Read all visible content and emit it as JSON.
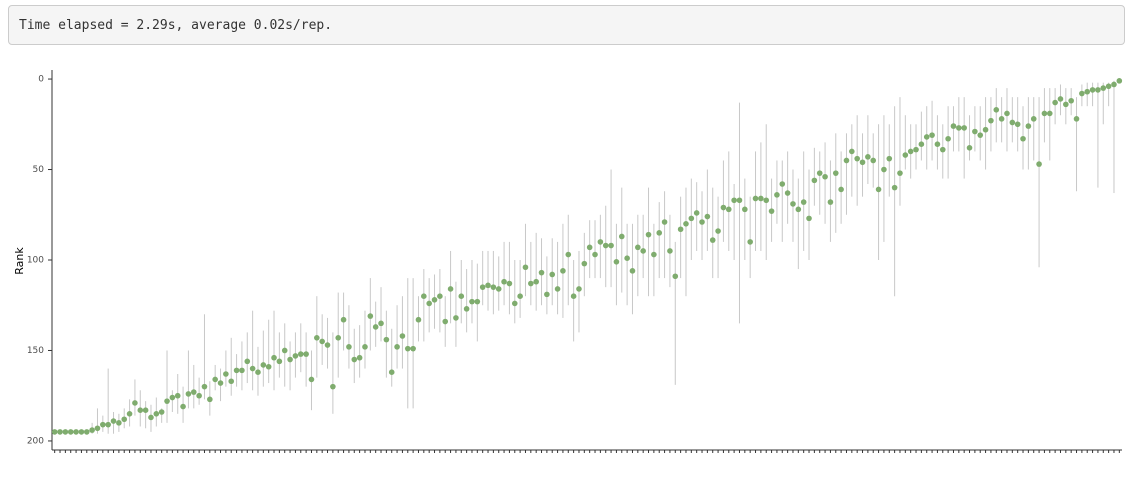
{
  "console_output": "Time elapsed = 2.29s, average 0.02s/rep.",
  "chart_data": {
    "type": "errorpoint",
    "y_label": "Rank",
    "invert_y": true,
    "ylim": [
      -5,
      205
    ],
    "yticks": [
      0,
      50,
      100,
      150,
      200
    ],
    "point_color": "#7fac6e",
    "bar_color": "#c8c8c8",
    "categories": [
      null,
      null,
      null,
      null,
      null,
      null,
      null,
      null,
      null,
      null,
      null,
      null,
      null,
      null,
      null,
      null,
      null,
      null,
      null,
      null,
      null,
      null,
      null,
      null,
      null,
      null,
      null,
      null,
      null,
      null,
      null,
      null,
      null,
      null,
      null,
      null,
      null,
      null,
      null,
      null,
      null,
      null,
      null,
      null,
      null,
      null,
      null,
      null,
      null,
      null,
      null,
      null,
      null,
      null,
      null,
      null,
      null,
      null,
      null,
      null,
      null,
      null,
      null,
      null,
      null,
      null,
      null,
      null,
      null,
      null,
      null,
      null,
      null,
      null,
      null,
      null,
      null,
      null,
      null,
      null,
      null,
      null,
      null,
      null,
      null,
      null,
      null,
      null,
      null,
      null,
      null,
      null,
      null,
      null,
      null,
      null,
      null,
      null,
      null,
      null,
      null,
      null,
      null,
      null,
      null,
      null,
      null,
      null,
      null,
      null,
      null,
      null,
      null,
      null,
      null,
      null,
      null,
      null,
      null,
      null,
      null,
      null,
      null,
      null,
      null,
      null,
      null,
      null,
      null,
      null,
      null,
      null,
      null,
      null,
      null,
      null,
      null,
      null,
      null,
      null,
      null,
      null,
      null,
      null,
      null,
      null,
      null,
      null,
      null,
      null,
      null,
      null,
      null,
      null,
      null,
      null,
      null,
      null,
      null,
      null,
      null,
      null,
      null,
      null,
      null,
      null,
      null,
      null,
      null,
      null,
      null,
      null,
      null,
      null,
      null,
      null,
      null,
      null,
      null,
      null,
      null,
      null,
      null,
      null,
      null,
      null,
      null,
      null,
      null,
      null,
      null,
      null,
      null,
      null,
      null,
      null,
      null,
      null,
      null,
      null
    ],
    "values": [
      195,
      195,
      195,
      195,
      195,
      195,
      195,
      194,
      193,
      191,
      191,
      189,
      190,
      188,
      185,
      179,
      183,
      183,
      187,
      185,
      184,
      178,
      176,
      175,
      181,
      174,
      173,
      175,
      170,
      177,
      166,
      168,
      163,
      167,
      161,
      161,
      156,
      160,
      162,
      158,
      159,
      154,
      156,
      150,
      155,
      153,
      152,
      152,
      166,
      143,
      145,
      147,
      170,
      143,
      133,
      148,
      155,
      154,
      148,
      131,
      137,
      135,
      144,
      162,
      148,
      142,
      149,
      149,
      133,
      120,
      124,
      122,
      120,
      134,
      116,
      132,
      120,
      127,
      123,
      123,
      115,
      114,
      115,
      116,
      112,
      113,
      124,
      120,
      104,
      113,
      112,
      107,
      119,
      108,
      116,
      106,
      97,
      120,
      116,
      102,
      93,
      97,
      90,
      92,
      92,
      101,
      87,
      99,
      106,
      93,
      95,
      86,
      97,
      85,
      79,
      95,
      109,
      83,
      80,
      77,
      74,
      79,
      76,
      89,
      84,
      71,
      72,
      67,
      67,
      72,
      90,
      66,
      66,
      67,
      73,
      64,
      58,
      63,
      69,
      72,
      68,
      77,
      56,
      52,
      54,
      68,
      52,
      61,
      45,
      40,
      44,
      46,
      43,
      45,
      61,
      50,
      44,
      60,
      52,
      42,
      40,
      39,
      36,
      32,
      31,
      36,
      39,
      33,
      26,
      27,
      27,
      38,
      29,
      31,
      28,
      23,
      17,
      22,
      19,
      24,
      25,
      33,
      26,
      22,
      47,
      19,
      19,
      13,
      11,
      14,
      12,
      22,
      8,
      7,
      6,
      6,
      5,
      4,
      3,
      1
    ],
    "lower": [
      195,
      195,
      195,
      195,
      195,
      195,
      195,
      190,
      182,
      186,
      160,
      184,
      185,
      182,
      177,
      166,
      172,
      178,
      180,
      176,
      182,
      150,
      172,
      163,
      170,
      150,
      158,
      165,
      130,
      167,
      158,
      160,
      150,
      143,
      152,
      145,
      140,
      128,
      148,
      139,
      133,
      128,
      140,
      135,
      145,
      140,
      135,
      140,
      150,
      120,
      130,
      132,
      140,
      118,
      118,
      125,
      138,
      136,
      128,
      110,
      123,
      115,
      128,
      138,
      125,
      120,
      110,
      110,
      120,
      105,
      110,
      108,
      105,
      120,
      95,
      112,
      100,
      105,
      100,
      102,
      95,
      95,
      95,
      98,
      90,
      90,
      100,
      100,
      80,
      90,
      85,
      88,
      98,
      88,
      90,
      80,
      75,
      100,
      95,
      85,
      78,
      78,
      75,
      70,
      50,
      80,
      60,
      80,
      80,
      75,
      75,
      60,
      80,
      68,
      62,
      75,
      90,
      65,
      60,
      55,
      57,
      62,
      50,
      60,
      65,
      45,
      40,
      58,
      13,
      55,
      65,
      40,
      35,
      25,
      55,
      45,
      45,
      40,
      50,
      55,
      40,
      50,
      38,
      40,
      35,
      45,
      30,
      40,
      30,
      25,
      20,
      30,
      20,
      30,
      25,
      20,
      25,
      15,
      10,
      20,
      25,
      25,
      18,
      15,
      12,
      20,
      25,
      15,
      15,
      10,
      10,
      20,
      15,
      15,
      10,
      10,
      5,
      10,
      5,
      10,
      10,
      15,
      10,
      10,
      10,
      5,
      5,
      5,
      3,
      5,
      5,
      10,
      3,
      2,
      2,
      2,
      2,
      2,
      1,
      0
    ],
    "upper": [
      195,
      195,
      195,
      195,
      195,
      195,
      195,
      196,
      196,
      195,
      196,
      196,
      195,
      193,
      192,
      186,
      192,
      193,
      195,
      192,
      190,
      190,
      184,
      185,
      190,
      182,
      182,
      180,
      177,
      186,
      172,
      178,
      170,
      175,
      170,
      172,
      168,
      172,
      175,
      170,
      168,
      172,
      165,
      170,
      172,
      165,
      162,
      170,
      183,
      165,
      158,
      160,
      185,
      165,
      150,
      160,
      168,
      165,
      160,
      150,
      148,
      145,
      165,
      170,
      160,
      160,
      182,
      182,
      145,
      145,
      140,
      138,
      140,
      148,
      135,
      148,
      135,
      140,
      135,
      145,
      125,
      128,
      130,
      128,
      125,
      130,
      135,
      132,
      120,
      125,
      128,
      125,
      130,
      125,
      130,
      132,
      125,
      145,
      140,
      120,
      110,
      110,
      110,
      115,
      115,
      125,
      118,
      125,
      130,
      120,
      110,
      120,
      120,
      110,
      110,
      115,
      169,
      110,
      120,
      100,
      95,
      100,
      95,
      110,
      110,
      90,
      95,
      100,
      135,
      100,
      110,
      95,
      95,
      100,
      90,
      80,
      90,
      80,
      90,
      105,
      95,
      100,
      70,
      75,
      80,
      90,
      85,
      80,
      75,
      65,
      70,
      65,
      58,
      60,
      100,
      90,
      65,
      120,
      70,
      50,
      55,
      50,
      45,
      50,
      45,
      50,
      55,
      55,
      40,
      40,
      55,
      45,
      40,
      45,
      50,
      40,
      35,
      35,
      40,
      35,
      40,
      50,
      50,
      45,
      104,
      35,
      45,
      25,
      20,
      25,
      20,
      62,
      15,
      15,
      15,
      60,
      25,
      15,
      63,
      1
    ]
  }
}
